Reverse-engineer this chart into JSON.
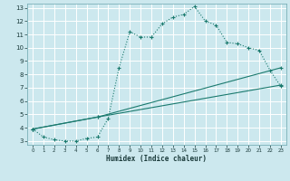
{
  "xlabel": "Humidex (Indice chaleur)",
  "ylabel": "",
  "bg_color": "#cce8ee",
  "grid_color": "#ffffff",
  "line_color": "#1a7a6e",
  "xlim": [
    -0.5,
    23.5
  ],
  "ylim": [
    2.7,
    13.3
  ],
  "xticks": [
    0,
    1,
    2,
    3,
    4,
    5,
    6,
    7,
    8,
    9,
    10,
    11,
    12,
    13,
    14,
    15,
    16,
    17,
    18,
    19,
    20,
    21,
    22,
    23
  ],
  "yticks": [
    3,
    4,
    5,
    6,
    7,
    8,
    9,
    10,
    11,
    12,
    13
  ],
  "line1_x": [
    0,
    1,
    2,
    3,
    4,
    5,
    6,
    7,
    8,
    9,
    10,
    11,
    12,
    13,
    14,
    15,
    16,
    17,
    18,
    19,
    20,
    21,
    22,
    23
  ],
  "line1_y": [
    3.9,
    3.3,
    3.1,
    3.0,
    3.0,
    3.2,
    3.3,
    4.7,
    8.5,
    11.2,
    10.8,
    10.8,
    11.8,
    12.3,
    12.5,
    13.1,
    12.0,
    11.7,
    10.4,
    10.3,
    10.0,
    9.8,
    8.3,
    7.1
  ],
  "line2_x": [
    0,
    6,
    23
  ],
  "line2_y": [
    3.9,
    4.8,
    7.2
  ],
  "line3_x": [
    0,
    6,
    23
  ],
  "line3_y": [
    3.9,
    4.8,
    8.5
  ]
}
